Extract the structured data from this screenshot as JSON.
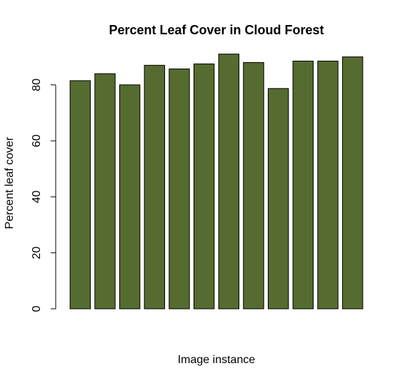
{
  "chart_data": {
    "type": "bar",
    "title": "Percent Leaf Cover in Cloud Forest",
    "xlabel": "Image instance",
    "ylabel": "Percent leaf cover",
    "categories": [
      "",
      "",
      "",
      "",
      "",
      "",
      "",
      "",
      "",
      "",
      "",
      ""
    ],
    "values": [
      81.5,
      84,
      80,
      87,
      85.7,
      87.5,
      91,
      88,
      78.7,
      88.5,
      88.5,
      90
    ],
    "ylim": [
      0,
      95
    ],
    "yticks": [
      "0",
      "20",
      "40",
      "60",
      "80"
    ],
    "grid": false,
    "legend": "none",
    "bar_color": "#556b2f",
    "bar_edge_color": "#000000"
  }
}
